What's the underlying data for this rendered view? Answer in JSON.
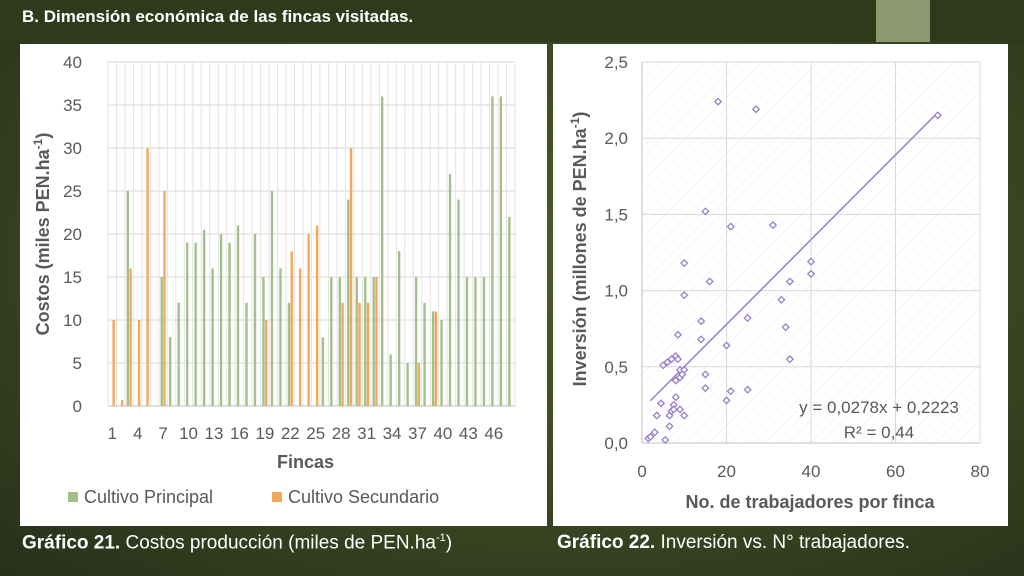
{
  "slide": {
    "title": "B. Dimensión económica de las fincas visitadas."
  },
  "captions": {
    "c1_bold": "Gráfico 21.",
    "c1_text": " Costos producción (miles de PEN.ha",
    "c1_sup": "-1",
    "c1_end": ")",
    "c2_bold": "Gráfico 22.",
    "c2_text": " Inversión vs. N° trabajadores."
  },
  "colors": {
    "primary_bar": "#a5bf8b",
    "secondary_bar": "#f0a95a",
    "scatter": "#9a7fc9",
    "trend": "#9a7fc9"
  },
  "chart_data": [
    {
      "type": "bar",
      "xlabel": "Fincas",
      "ylabel_main": "Costos (miles PEN.ha",
      "ylabel_sup": "-1",
      "ylabel_end": ")",
      "ylim": [
        0,
        40
      ],
      "yticks": [
        "0",
        "5",
        "10",
        "15",
        "20",
        "25",
        "30",
        "35",
        "40"
      ],
      "categories": [
        1,
        2,
        3,
        4,
        5,
        6,
        7,
        8,
        9,
        10,
        11,
        12,
        13,
        14,
        15,
        16,
        17,
        18,
        19,
        20,
        21,
        22,
        23,
        24,
        25,
        26,
        27,
        28,
        29,
        30,
        31,
        32,
        33,
        34,
        35,
        36,
        37,
        38,
        39,
        40,
        41,
        42,
        43,
        44,
        45,
        46,
        47,
        48
      ],
      "xtick_labels": [
        "1",
        "4",
        "7",
        "10",
        "13",
        "16",
        "19",
        "22",
        "25",
        "28",
        "31",
        "34",
        "37",
        "40",
        "43",
        "46"
      ],
      "grid": true,
      "legend_position": "bottom",
      "series": [
        {
          "name": "Cultivo Principal",
          "values": [
            0,
            0,
            25,
            0,
            0,
            0,
            15,
            8,
            12,
            19,
            19,
            20.5,
            16,
            20,
            19,
            21,
            12,
            20,
            15,
            25,
            16,
            12,
            0,
            0,
            0,
            8,
            15,
            15,
            24,
            15,
            15,
            15,
            36,
            6,
            18,
            5,
            15,
            12,
            11,
            10,
            27,
            24,
            15,
            15,
            15,
            36,
            36,
            22
          ]
        },
        {
          "name": "Cultivo Secundario",
          "values": [
            10,
            0.7,
            16,
            10,
            30,
            0,
            25,
            0,
            0,
            0,
            0,
            0,
            0,
            0,
            0,
            0,
            0,
            0,
            10,
            0,
            0,
            18,
            16,
            20,
            21,
            0,
            0,
            12,
            30,
            12,
            12,
            15,
            0,
            0,
            0,
            0,
            5,
            0,
            11,
            0,
            0,
            0,
            0,
            0,
            0,
            0,
            0,
            0
          ]
        }
      ]
    },
    {
      "type": "scatter",
      "xlabel": "No. de trabajadores por finca",
      "ylabel_main": "Inversión (millones de PEN.ha",
      "ylabel_sup": "-1",
      "ylabel_end": ")",
      "xlim": [
        0,
        80
      ],
      "ylim": [
        0,
        2.5
      ],
      "xticks": [
        "0",
        "20",
        "40",
        "60",
        "80"
      ],
      "yticks": [
        "0,0",
        "0,5",
        "1,0",
        "1,5",
        "2,0",
        "2,5"
      ],
      "grid": true,
      "equation": "y = 0,0278x + 0,2223",
      "r2": "R² = 0,44",
      "trendline": {
        "slope": 0.0278,
        "intercept": 0.2223,
        "x_range": [
          2,
          70
        ]
      },
      "points": [
        [
          1.5,
          0.03
        ],
        [
          2,
          0.04
        ],
        [
          3,
          0.07
        ],
        [
          3.5,
          0.18
        ],
        [
          4.5,
          0.26
        ],
        [
          5,
          0.51
        ],
        [
          5.5,
          0.02
        ],
        [
          6,
          0.53
        ],
        [
          6.5,
          0.18
        ],
        [
          6.5,
          0.11
        ],
        [
          7,
          0.55
        ],
        [
          7,
          0.21
        ],
        [
          7.5,
          0.25
        ],
        [
          7.5,
          0.22
        ],
        [
          8,
          0.41
        ],
        [
          8,
          0.3
        ],
        [
          8,
          0.57
        ],
        [
          8.5,
          0.55
        ],
        [
          9,
          0.22
        ],
        [
          9,
          0.43
        ],
        [
          9,
          0.48
        ],
        [
          9.5,
          0.45
        ],
        [
          10,
          0.48
        ],
        [
          10,
          0.18
        ],
        [
          8.5,
          0.71
        ],
        [
          10,
          0.97
        ],
        [
          10,
          1.18
        ],
        [
          14,
          0.68
        ],
        [
          14,
          0.8
        ],
        [
          15,
          0.45
        ],
        [
          15,
          0.36
        ],
        [
          15,
          1.52
        ],
        [
          16,
          1.06
        ],
        [
          18,
          2.24
        ],
        [
          20,
          0.64
        ],
        [
          20,
          0.28
        ],
        [
          21,
          0.34
        ],
        [
          21,
          1.42
        ],
        [
          25,
          0.35
        ],
        [
          25,
          0.82
        ],
        [
          27,
          2.19
        ],
        [
          31,
          1.43
        ],
        [
          33,
          0.94
        ],
        [
          34,
          0.76
        ],
        [
          35,
          0.55
        ],
        [
          35,
          1.06
        ],
        [
          40,
          1.11
        ],
        [
          40,
          1.19
        ],
        [
          70,
          2.15
        ]
      ]
    }
  ]
}
